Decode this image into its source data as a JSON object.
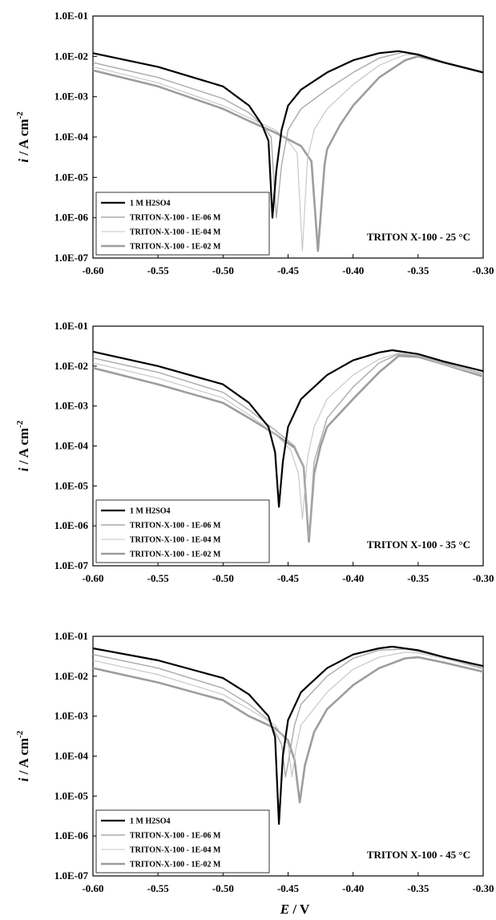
{
  "figure": {
    "x_axis_label": {
      "italic": "E",
      "rest": " / V"
    },
    "y_axis_label": {
      "italic": "i",
      "rest": " / A cm",
      "sup": "-2"
    }
  },
  "chart_data": [
    {
      "type": "line",
      "condition_label": "TRITON X-100 - 25 °C",
      "x_ticks": [
        "-0.60",
        "-0.55",
        "-0.50",
        "-0.45",
        "-0.40",
        "-0.35",
        "-0.30"
      ],
      "y_ticks": [
        "1.0E-07",
        "1.0E-06",
        "1.0E-05",
        "1.0E-04",
        "1.0E-03",
        "1.0E-02",
        "1.0E-01"
      ],
      "xlim": [
        -0.6,
        -0.3
      ],
      "ylim": [
        1e-07,
        0.1
      ],
      "y_scale": "log",
      "grid": false,
      "legend_position": "bottom-left",
      "series": [
        {
          "name": "1 M H2SO4",
          "color": "#000000",
          "width": 2.2,
          "points": [
            [
              -0.6,
              0.012
            ],
            [
              -0.55,
              0.0055
            ],
            [
              -0.5,
              0.0018
            ],
            [
              -0.48,
              0.0006
            ],
            [
              -0.47,
              0.0002
            ],
            [
              -0.465,
              8e-05
            ],
            [
              -0.462,
              1e-06
            ],
            [
              -0.459,
              1.5e-05
            ],
            [
              -0.455,
              0.00015
            ],
            [
              -0.45,
              0.0006
            ],
            [
              -0.44,
              0.0015
            ],
            [
              -0.42,
              0.004
            ],
            [
              -0.4,
              0.008
            ],
            [
              -0.38,
              0.012
            ],
            [
              -0.365,
              0.0135
            ],
            [
              -0.35,
              0.011
            ],
            [
              -0.33,
              0.007
            ],
            [
              -0.3,
              0.004
            ]
          ]
        },
        {
          "name": "TRITON-X-100 - 1E-06 M",
          "color": "#aaaaaa",
          "width": 1.4,
          "points": [
            [
              -0.6,
              0.007
            ],
            [
              -0.55,
              0.003
            ],
            [
              -0.5,
              0.0009
            ],
            [
              -0.48,
              0.0004
            ],
            [
              -0.47,
              0.0002
            ],
            [
              -0.463,
              0.0001
            ],
            [
              -0.459,
              1e-06
            ],
            [
              -0.455,
              2e-05
            ],
            [
              -0.45,
              0.00015
            ],
            [
              -0.44,
              0.0005
            ],
            [
              -0.42,
              0.0015
            ],
            [
              -0.4,
              0.004
            ],
            [
              -0.38,
              0.009
            ],
            [
              -0.36,
              0.013
            ],
            [
              -0.35,
              0.0115
            ],
            [
              -0.33,
              0.007
            ],
            [
              -0.3,
              0.004
            ]
          ]
        },
        {
          "name": "TRITON-X-100 - 1E-04 M",
          "color": "#c4c4c4",
          "width": 1.1,
          "points": [
            [
              -0.6,
              0.0055
            ],
            [
              -0.55,
              0.0022
            ],
            [
              -0.5,
              0.0006
            ],
            [
              -0.48,
              0.0003
            ],
            [
              -0.46,
              0.00015
            ],
            [
              -0.45,
              8e-05
            ],
            [
              -0.443,
              4e-05
            ],
            [
              -0.439,
              1.5e-07
            ],
            [
              -0.435,
              3e-05
            ],
            [
              -0.43,
              0.00015
            ],
            [
              -0.42,
              0.0005
            ],
            [
              -0.4,
              0.002
            ],
            [
              -0.38,
              0.006
            ],
            [
              -0.36,
              0.011
            ],
            [
              -0.35,
              0.011
            ],
            [
              -0.33,
              0.007
            ],
            [
              -0.3,
              0.004
            ]
          ]
        },
        {
          "name": "TRITON-X-100 - 1E-02 M",
          "color": "#9d9d9d",
          "width": 2.6,
          "points": [
            [
              -0.6,
              0.0045
            ],
            [
              -0.55,
              0.0018
            ],
            [
              -0.5,
              0.0005
            ],
            [
              -0.48,
              0.00025
            ],
            [
              -0.46,
              0.00013
            ],
            [
              -0.44,
              6e-05
            ],
            [
              -0.432,
              2.5e-05
            ],
            [
              -0.427,
              1.5e-07
            ],
            [
              -0.422,
              2e-05
            ],
            [
              -0.42,
              5e-05
            ],
            [
              -0.41,
              0.0002
            ],
            [
              -0.4,
              0.0006
            ],
            [
              -0.38,
              0.003
            ],
            [
              -0.36,
              0.008
            ],
            [
              -0.35,
              0.01
            ],
            [
              -0.33,
              0.007
            ],
            [
              -0.3,
              0.004
            ]
          ]
        }
      ]
    },
    {
      "type": "line",
      "condition_label": "TRITON X-100 - 35 °C",
      "x_ticks": [
        "-0.60",
        "-0.55",
        "-0.50",
        "-0.45",
        "-0.40",
        "-0.35",
        "-0.30"
      ],
      "y_ticks": [
        "1.0E-07",
        "1.0E-06",
        "1.0E-05",
        "1.0E-04",
        "1.0E-03",
        "1.0E-02",
        "1.0E-01"
      ],
      "xlim": [
        -0.6,
        -0.3
      ],
      "ylim": [
        1e-07,
        0.1
      ],
      "y_scale": "log",
      "grid": false,
      "legend_position": "bottom-left",
      "series": [
        {
          "name": "1 M H2SO4",
          "color": "#000000",
          "width": 2.2,
          "points": [
            [
              -0.6,
              0.023
            ],
            [
              -0.55,
              0.01
            ],
            [
              -0.5,
              0.0035
            ],
            [
              -0.48,
              0.0012
            ],
            [
              -0.465,
              0.0003
            ],
            [
              -0.46,
              7e-05
            ],
            [
              -0.457,
              3e-06
            ],
            [
              -0.454,
              4e-05
            ],
            [
              -0.45,
              0.0003
            ],
            [
              -0.44,
              0.0015
            ],
            [
              -0.42,
              0.006
            ],
            [
              -0.4,
              0.014
            ],
            [
              -0.38,
              0.022
            ],
            [
              -0.37,
              0.025
            ],
            [
              -0.35,
              0.02
            ],
            [
              -0.33,
              0.013
            ],
            [
              -0.3,
              0.0075
            ]
          ]
        },
        {
          "name": "TRITON-X-100 - 1E-06 M",
          "color": "#aaaaaa",
          "width": 1.4,
          "points": [
            [
              -0.6,
              0.016
            ],
            [
              -0.55,
              0.007
            ],
            [
              -0.5,
              0.0022
            ],
            [
              -0.48,
              0.0008
            ],
            [
              -0.46,
              0.00025
            ],
            [
              -0.445,
              0.0001
            ],
            [
              -0.438,
              3e-05
            ],
            [
              -0.434,
              5e-07
            ],
            [
              -0.43,
              4e-05
            ],
            [
              -0.42,
              0.0005
            ],
            [
              -0.4,
              0.003
            ],
            [
              -0.38,
              0.012
            ],
            [
              -0.365,
              0.02
            ],
            [
              -0.35,
              0.018
            ],
            [
              -0.33,
              0.012
            ],
            [
              -0.3,
              0.0065
            ]
          ]
        },
        {
          "name": "TRITON-X-100 - 1E-04 M",
          "color": "#c4c4c4",
          "width": 1.1,
          "points": [
            [
              -0.6,
              0.012
            ],
            [
              -0.55,
              0.005
            ],
            [
              -0.5,
              0.0016
            ],
            [
              -0.48,
              0.0006
            ],
            [
              -0.46,
              0.0002
            ],
            [
              -0.448,
              8e-05
            ],
            [
              -0.442,
              2e-05
            ],
            [
              -0.439,
              1.5e-06
            ],
            [
              -0.435,
              5e-05
            ],
            [
              -0.43,
              0.0003
            ],
            [
              -0.42,
              0.0015
            ],
            [
              -0.4,
              0.006
            ],
            [
              -0.38,
              0.015
            ],
            [
              -0.365,
              0.021
            ],
            [
              -0.35,
              0.018
            ],
            [
              -0.33,
              0.011
            ],
            [
              -0.3,
              0.006
            ]
          ]
        },
        {
          "name": "TRITON-X-100 - 1E-02 M",
          "color": "#9d9d9d",
          "width": 2.6,
          "points": [
            [
              -0.6,
              0.009
            ],
            [
              -0.55,
              0.0035
            ],
            [
              -0.5,
              0.0012
            ],
            [
              -0.48,
              0.0005
            ],
            [
              -0.46,
              0.0002
            ],
            [
              -0.445,
              9e-05
            ],
            [
              -0.438,
              3e-05
            ],
            [
              -0.434,
              4e-07
            ],
            [
              -0.43,
              2e-05
            ],
            [
              -0.425,
              0.0001
            ],
            [
              -0.42,
              0.0003
            ],
            [
              -0.4,
              0.0015
            ],
            [
              -0.38,
              0.007
            ],
            [
              -0.365,
              0.018
            ],
            [
              -0.35,
              0.017
            ],
            [
              -0.33,
              0.011
            ],
            [
              -0.3,
              0.0055
            ]
          ]
        }
      ]
    },
    {
      "type": "line",
      "condition_label": "TRITON X-100 - 45 °C",
      "x_ticks": [
        "-0.60",
        "-0.55",
        "-0.50",
        "-0.45",
        "-0.40",
        "-0.35",
        "-0.30"
      ],
      "y_ticks": [
        "1.0E-07",
        "1.0E-06",
        "1.0E-05",
        "1.0E-04",
        "1.0E-03",
        "1.0E-02",
        "1.0E-01"
      ],
      "xlim": [
        -0.6,
        -0.3
      ],
      "ylim": [
        1e-07,
        0.1
      ],
      "y_scale": "log",
      "grid": false,
      "legend_position": "bottom-left",
      "series": [
        {
          "name": "1 M H2SO4",
          "color": "#000000",
          "width": 2.2,
          "points": [
            [
              -0.6,
              0.05
            ],
            [
              -0.55,
              0.025
            ],
            [
              -0.5,
              0.009
            ],
            [
              -0.48,
              0.0035
            ],
            [
              -0.465,
              0.001
            ],
            [
              -0.46,
              0.0003
            ],
            [
              -0.457,
              2e-06
            ],
            [
              -0.454,
              0.0001
            ],
            [
              -0.45,
              0.0008
            ],
            [
              -0.44,
              0.004
            ],
            [
              -0.42,
              0.016
            ],
            [
              -0.4,
              0.035
            ],
            [
              -0.38,
              0.05
            ],
            [
              -0.37,
              0.055
            ],
            [
              -0.35,
              0.045
            ],
            [
              -0.33,
              0.03
            ],
            [
              -0.3,
              0.018
            ]
          ]
        },
        {
          "name": "TRITON-X-100 - 1E-06 M",
          "color": "#aaaaaa",
          "width": 1.4,
          "points": [
            [
              -0.6,
              0.035
            ],
            [
              -0.55,
              0.016
            ],
            [
              -0.5,
              0.005
            ],
            [
              -0.48,
              0.002
            ],
            [
              -0.465,
              0.0008
            ],
            [
              -0.455,
              0.0002
            ],
            [
              -0.452,
              3e-05
            ],
            [
              -0.449,
              0.0001
            ],
            [
              -0.445,
              0.0006
            ],
            [
              -0.44,
              0.002
            ],
            [
              -0.42,
              0.01
            ],
            [
              -0.4,
              0.028
            ],
            [
              -0.38,
              0.045
            ],
            [
              -0.36,
              0.048
            ],
            [
              -0.35,
              0.042
            ],
            [
              -0.33,
              0.03
            ],
            [
              -0.3,
              0.016
            ]
          ]
        },
        {
          "name": "TRITON-X-100 - 1E-04 M",
          "color": "#c4c4c4",
          "width": 1.1,
          "points": [
            [
              -0.6,
              0.025
            ],
            [
              -0.55,
              0.011
            ],
            [
              -0.5,
              0.0035
            ],
            [
              -0.48,
              0.0015
            ],
            [
              -0.46,
              0.0006
            ],
            [
              -0.45,
              0.0002
            ],
            [
              -0.447,
              3e-05
            ],
            [
              -0.444,
              0.00015
            ],
            [
              -0.44,
              0.0006
            ],
            [
              -0.42,
              0.004
            ],
            [
              -0.4,
              0.015
            ],
            [
              -0.38,
              0.03
            ],
            [
              -0.36,
              0.04
            ],
            [
              -0.35,
              0.038
            ],
            [
              -0.33,
              0.028
            ],
            [
              -0.3,
              0.015
            ]
          ]
        },
        {
          "name": "TRITON-X-100 - 1E-02 M",
          "color": "#9d9d9d",
          "width": 2.6,
          "points": [
            [
              -0.6,
              0.016
            ],
            [
              -0.55,
              0.007
            ],
            [
              -0.5,
              0.0025
            ],
            [
              -0.48,
              0.001
            ],
            [
              -0.46,
              0.0005
            ],
            [
              -0.45,
              0.00025
            ],
            [
              -0.445,
              8e-05
            ],
            [
              -0.441,
              7e-06
            ],
            [
              -0.437,
              6e-05
            ],
            [
              -0.43,
              0.0004
            ],
            [
              -0.42,
              0.0015
            ],
            [
              -0.4,
              0.006
            ],
            [
              -0.38,
              0.016
            ],
            [
              -0.36,
              0.028
            ],
            [
              -0.35,
              0.03
            ],
            [
              -0.33,
              0.022
            ],
            [
              -0.3,
              0.013
            ]
          ]
        }
      ]
    }
  ]
}
